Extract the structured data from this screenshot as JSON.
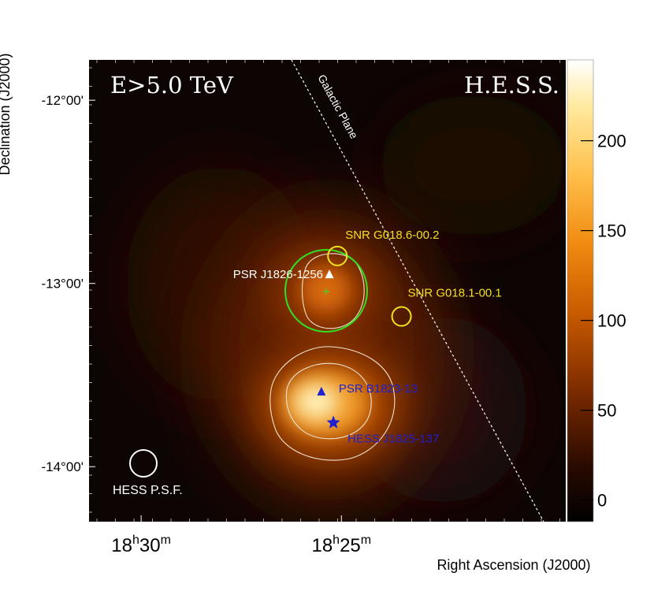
{
  "chart_data": {
    "type": "heatmap",
    "colormap": "afmhot",
    "plot_labels": {
      "energy_label": "E>5.0 TeV",
      "telescope_label": "H.E.S.S.",
      "galactic_plane_label": "Galactic Plane",
      "psf_label": "HESS P.S.F."
    },
    "axes": {
      "xlabel": "Right Ascension (J2000)",
      "ylabel": "Declination (J2000)",
      "x_ticks": [
        {
          "h": "18",
          "h_unit": "h",
          "m": "30",
          "m_unit": "m",
          "ra_min": 1110
        },
        {
          "h": "18",
          "h_unit": "h",
          "m": "25",
          "m_unit": "m",
          "ra_min": 1105
        }
      ],
      "y_ticks": [
        {
          "label": "-12°00'",
          "dec": -12.0
        },
        {
          "label": "-13°00'",
          "dec": -13.0
        },
        {
          "label": "-14°00'",
          "dec": -14.0
        }
      ],
      "ra_range_min": [
        1111.3,
        1099.4
      ],
      "dec_range": [
        -11.78,
        -14.3
      ]
    },
    "colorbar": {
      "range": [
        -12,
        245
      ],
      "ticks": [
        0,
        50,
        100,
        150,
        200
      ],
      "tick_labels": [
        "0",
        "50",
        "100",
        "150",
        "200"
      ]
    },
    "sources": [
      {
        "name": "SNR G018.6-00.2",
        "kind": "circle",
        "color": "#f0e020",
        "ra_min": 1105.1,
        "dec": -12.85
      },
      {
        "name": "SNR G018.1-00.1",
        "kind": "circle",
        "color": "#f0e020",
        "ra_min": 1103.5,
        "dec": -13.18
      },
      {
        "name": "PSR J1826-1256",
        "kind": "triangle",
        "color": "#ffffff",
        "ra_min": 1105.3,
        "dec": -12.95
      },
      {
        "name": "PSR B1823-13",
        "kind": "triangle",
        "color": "#2020d0",
        "ra_min": 1105.5,
        "dec": -13.59
      },
      {
        "name": "HESS J1825-137",
        "kind": "star",
        "color": "#2020d0",
        "ra_min": 1105.2,
        "dec": -13.76
      }
    ],
    "emission_peaks": [
      {
        "ra_min": 1105.2,
        "dec": -13.05,
        "value": 120
      },
      {
        "ra_min": 1105.5,
        "dec": -13.72,
        "value": 240
      }
    ]
  }
}
